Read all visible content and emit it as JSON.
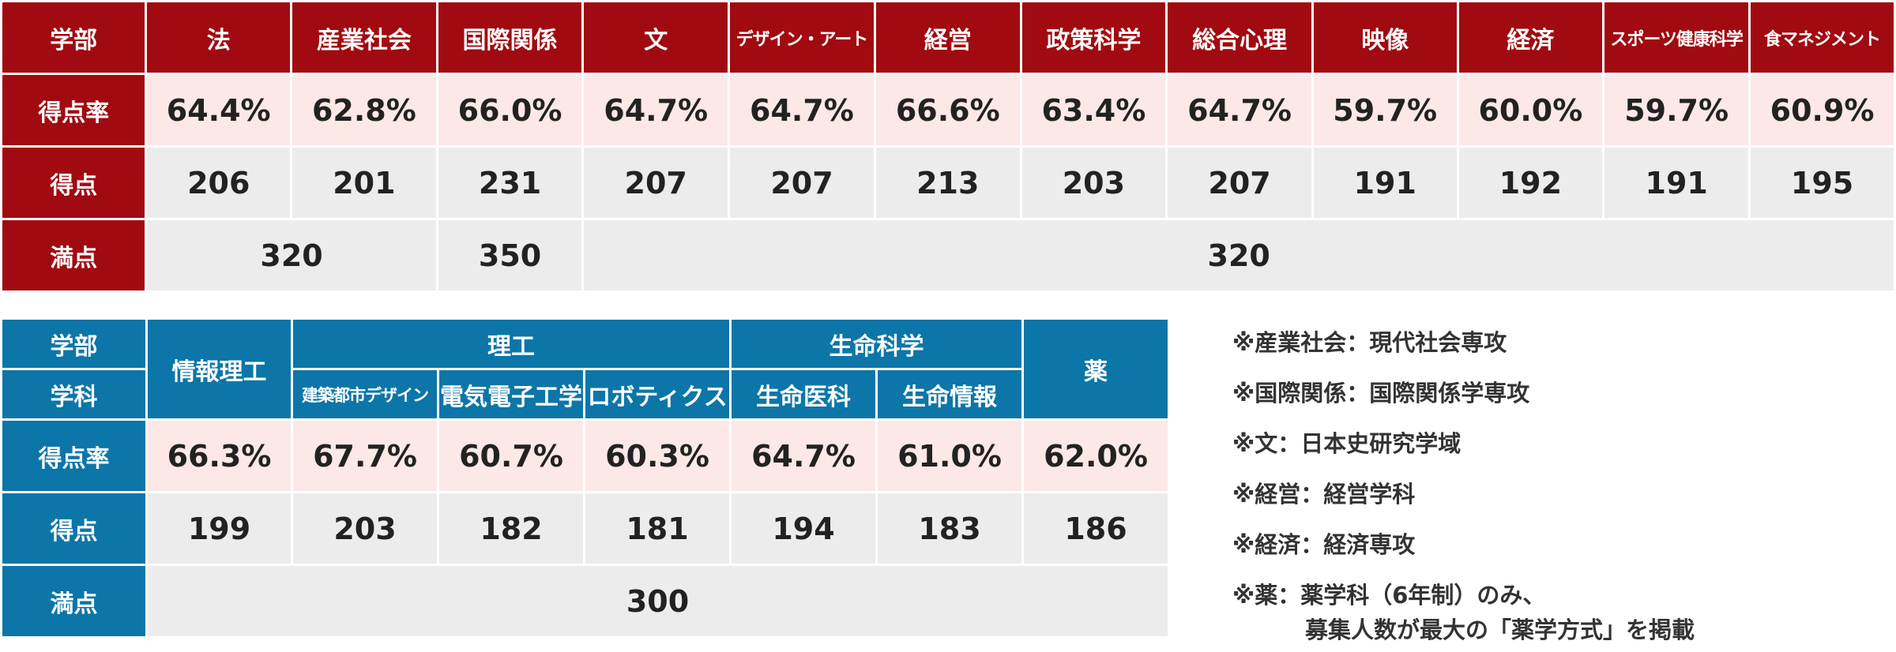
{
  "top_table": {
    "header_label": "学部",
    "row_labels": {
      "rate": "得点率",
      "score": "得点",
      "full": "満点"
    },
    "faculties": [
      {
        "name": "法",
        "rate": "64.4%",
        "score": "206"
      },
      {
        "name": "産業社会",
        "rate": "62.8%",
        "score": "201"
      },
      {
        "name": "国際関係",
        "rate": "66.0%",
        "score": "231"
      },
      {
        "name": "文",
        "rate": "64.7%",
        "score": "207"
      },
      {
        "name": "デザイン・アート",
        "rate": "64.7%",
        "score": "207"
      },
      {
        "name": "経営",
        "rate": "66.6%",
        "score": "213"
      },
      {
        "name": "政策科学",
        "rate": "63.4%",
        "score": "203"
      },
      {
        "name": "総合心理",
        "rate": "64.7%",
        "score": "207"
      },
      {
        "name": "映像",
        "rate": "59.7%",
        "score": "191"
      },
      {
        "name": "経済",
        "rate": "60.0%",
        "score": "192"
      },
      {
        "name": "スポーツ健康科学",
        "rate": "59.7%",
        "score": "191"
      },
      {
        "name": "食マネジメント",
        "rate": "60.9%",
        "score": "195"
      }
    ],
    "full_marks": [
      "320",
      "350",
      "320"
    ]
  },
  "bottom_table": {
    "header_faculty_label": "学部",
    "header_dept_label": "学科",
    "row_labels": {
      "rate": "得点率",
      "score": "得点",
      "full": "満点"
    },
    "groups": {
      "info": "情報理工",
      "sci_eng": "理工",
      "life": "生命科学",
      "pharma": "薬"
    },
    "departments": [
      {
        "name": "建築都市デザイン"
      },
      {
        "name": "電気電子工学"
      },
      {
        "name": "ロボティクス"
      },
      {
        "name": "生命医科"
      },
      {
        "name": "生命情報"
      }
    ],
    "rates": [
      "66.3%",
      "67.7%",
      "60.7%",
      "60.3%",
      "64.7%",
      "61.0%",
      "62.0%"
    ],
    "scores": [
      "199",
      "203",
      "182",
      "181",
      "194",
      "183",
      "186"
    ],
    "full_marks": "300"
  },
  "notes": [
    "※産業社会：現代社会専攻",
    "※国際関係：国際関係学専攻",
    "※文：日本史研究学域",
    "※経営：経営学科",
    "※経済：経済専攻",
    "※薬：薬学科（6年制）のみ、",
    "募集人数が最大の「薬学方式」を掲載"
  ],
  "colors": {
    "top_header": "#a10a10",
    "bottom_header": "#0c76a8",
    "rate_bg": "#fde8e8",
    "score_bg": "#ececec"
  }
}
